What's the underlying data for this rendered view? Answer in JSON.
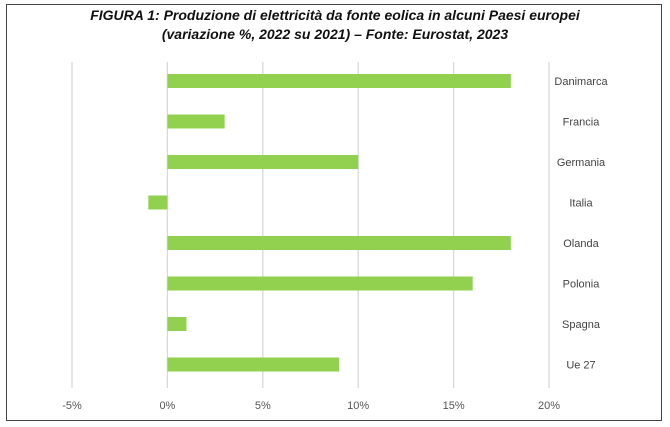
{
  "chart_data": {
    "type": "bar",
    "orientation": "horizontal",
    "title_line1": "FIGURA 1: Produzione di elettricità da fonte eolica in alcuni Paesi europei",
    "title_line2": "(variazione %, 2022 su 2021) – Fonte: Eurostat, 2023",
    "categories": [
      "Danimarca",
      "Francia",
      "Germania",
      "Italia",
      "Olanda",
      "Polonia",
      "Spagna",
      "Ue 27"
    ],
    "values": [
      18,
      3,
      10,
      -1,
      18,
      16,
      1,
      9
    ],
    "xlim": [
      -5,
      20
    ],
    "xticks": [
      -5,
      0,
      5,
      10,
      15,
      20
    ],
    "xtick_labels": [
      "-5%",
      "0%",
      "5%",
      "10%",
      "15%",
      "20%"
    ],
    "bar_color": "#92D050",
    "grid_color": "#D9D9D9",
    "grid": true,
    "legend": "none"
  }
}
